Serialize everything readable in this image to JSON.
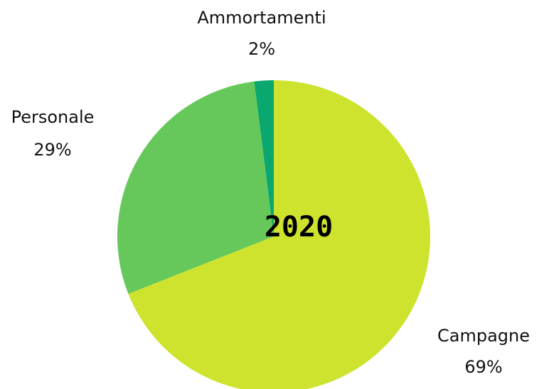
{
  "chart_data": {
    "type": "pie",
    "center_label": "2020",
    "start_angle_deg": 0,
    "direction": "clockwise",
    "slices": [
      {
        "name": "Campagne",
        "value": 69,
        "label": "69%",
        "color": "#cde32e"
      },
      {
        "name": "Personale",
        "value": 29,
        "label": "29%",
        "color": "#66c85a"
      },
      {
        "name": "Ammortamenti",
        "value": 2,
        "label": "2%",
        "color": "#0aa86e"
      }
    ],
    "legend": "none"
  }
}
